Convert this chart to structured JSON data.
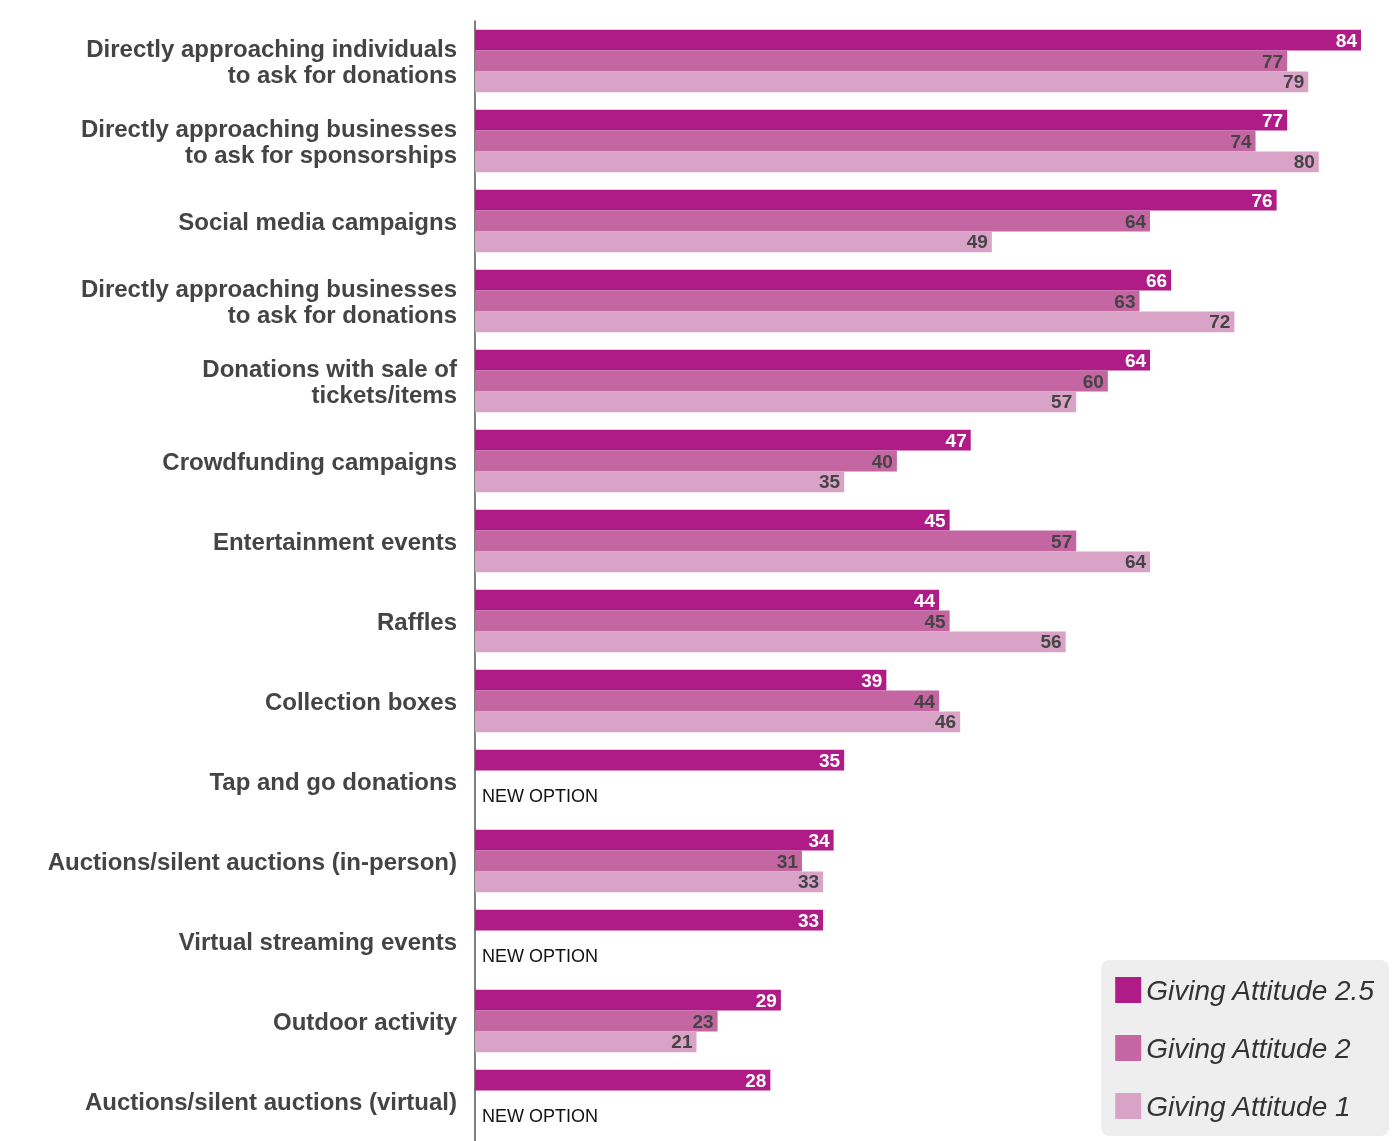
{
  "chart_data": {
    "type": "bar",
    "orientation": "horizontal",
    "data_labels": true,
    "legend": "bottom right",
    "grid": false,
    "categories": [
      "Directly approaching individuals\nto ask for donations",
      "Directly approaching businesses\nto ask for sponsorships",
      "Social media campaigns",
      "Directly approaching businesses\nto ask for donations",
      "Donations with sale of\ntickets/items",
      "Crowdfunding campaigns",
      "Entertainment events",
      "Raffles",
      "Collection boxes",
      "Tap and go donations",
      "Auctions/silent auctions (in-person)",
      "Virtual streaming events",
      "Outdoor activity",
      "Auctions/silent auctions (virtual)"
    ],
    "series": [
      {
        "name": "Giving Attitude 2.5",
        "color": "#b01c87",
        "values": [
          84,
          77,
          76,
          66,
          64,
          47,
          45,
          44,
          39,
          35,
          34,
          33,
          29,
          28
        ]
      },
      {
        "name": "Giving Attitude 2",
        "color": "#c466a1",
        "values": [
          77,
          74,
          64,
          63,
          60,
          40,
          57,
          45,
          44,
          null,
          31,
          null,
          23,
          null
        ]
      },
      {
        "name": "Giving Attitude 1",
        "color": "#d9a3c8",
        "values": [
          79,
          80,
          49,
          72,
          57,
          35,
          64,
          56,
          46,
          null,
          33,
          null,
          21,
          null
        ]
      }
    ],
    "annotations": [
      "NEW OPTION",
      "NEW OPTION",
      "NEW OPTION"
    ]
  }
}
